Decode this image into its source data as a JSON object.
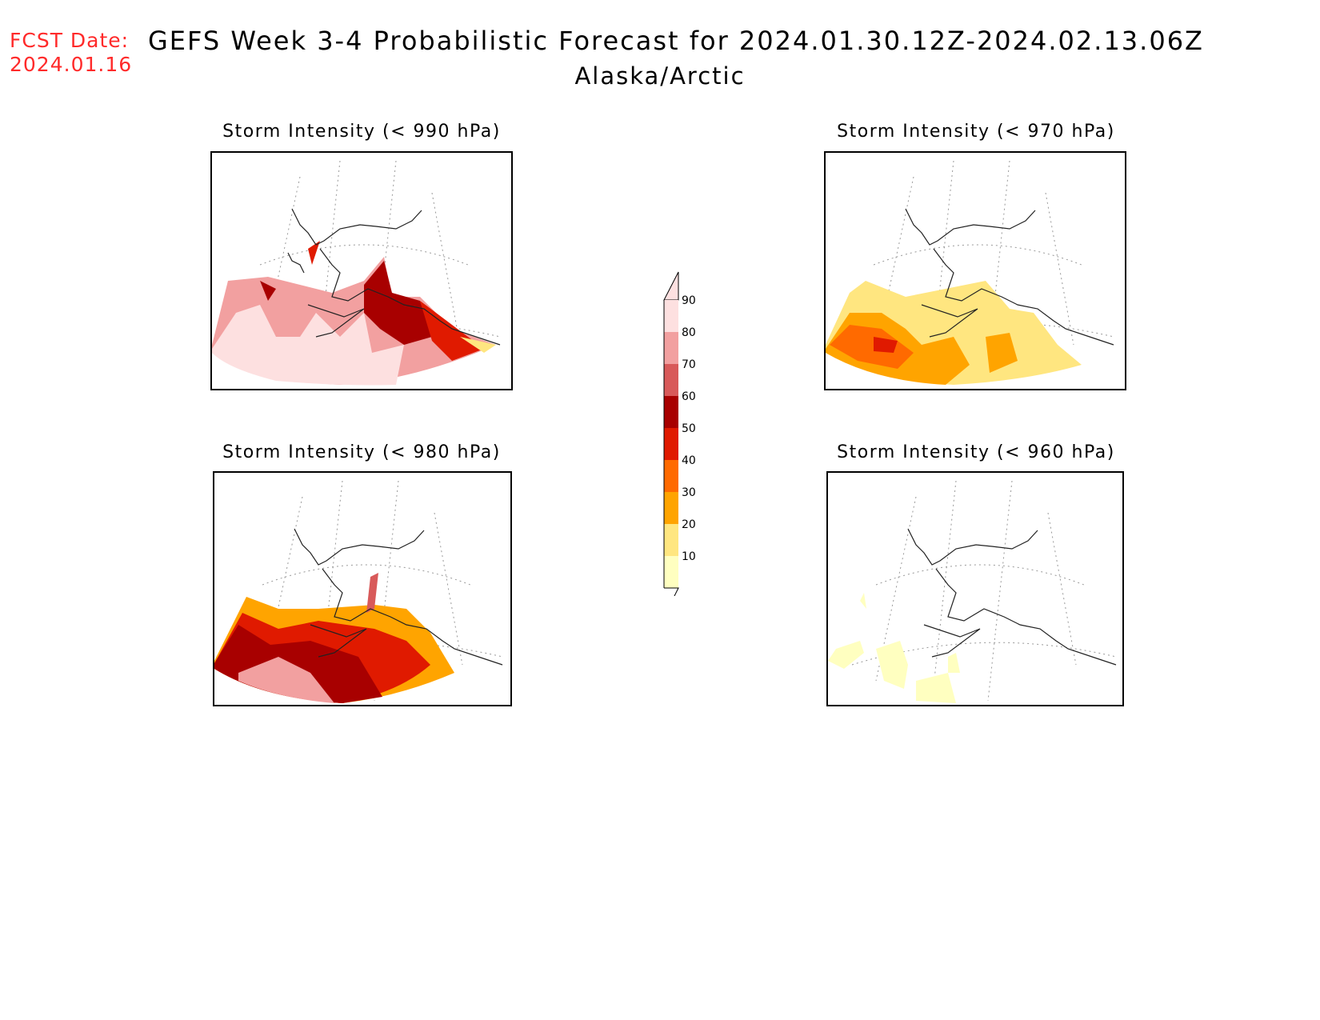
{
  "header": {
    "fcst_label": "FCST Date:",
    "fcst_date": "2024.01.16",
    "title": "GEFS Week 3-4 Probabilistic Forecast for 2024.01.30.12Z-2024.02.13.06Z",
    "region": "Alaska/Arctic"
  },
  "panels": [
    {
      "id": "p990",
      "title": "Storm Intensity (< 990 hPa)",
      "intensity": "very-high"
    },
    {
      "id": "p970",
      "title": "Storm Intensity (< 970 hPa)",
      "intensity": "moderate"
    },
    {
      "id": "p980",
      "title": "Storm Intensity (< 980 hPa)",
      "intensity": "high"
    },
    {
      "id": "p960",
      "title": "Storm Intensity (< 960 hPa)",
      "intensity": "low"
    }
  ],
  "legend": {
    "levels": [
      "10",
      "20",
      "30",
      "40",
      "50",
      "60",
      "70",
      "80",
      "90"
    ],
    "colors": [
      "#ffffc0",
      "#ffe680",
      "#ffa400",
      "#ff6a00",
      "#e01a00",
      "#a80000",
      "#d85a5a",
      "#f2a0a0",
      "#fde0e0"
    ]
  }
}
